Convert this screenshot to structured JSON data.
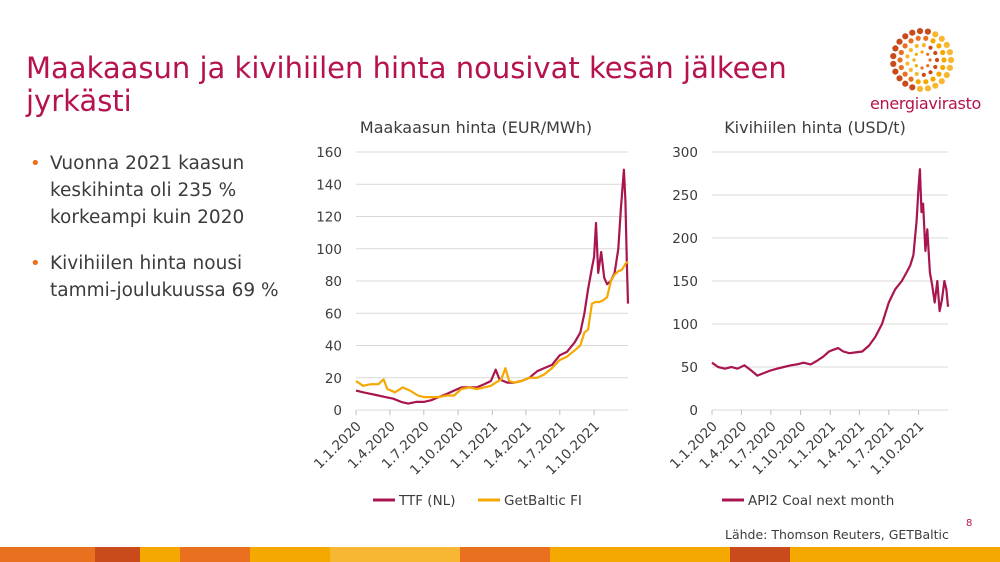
{
  "slide": {
    "title": "Maakaasun ja kivihiilen hinta nousivat kesän jälkeen jyrkästi",
    "bullets": [
      "Vuonna 2021 kaasun keskihinta oli 235 % korkeampi kuin 2020",
      "Kivihiilen hinta nousi tammi-joulukuussa 69 %"
    ],
    "source": "Lähde: Thomson Reuters, GETBaltic",
    "page_number": "8",
    "logo_text": "energiavirasto"
  },
  "colors": {
    "title": "#b5124f",
    "ttf": "#a8154f",
    "getbaltic": "#f5a800",
    "coal": "#a8154f",
    "bullet": "#e8701e",
    "grid": "#d9d9d9",
    "band": [
      "#e8701e",
      "#c94a1a",
      "#f5a800",
      "#e8701e",
      "#f5a800",
      "#f7b733",
      "#e8701e",
      "#f5a800",
      "#c94a1a",
      "#f5a800"
    ]
  },
  "chart_data": [
    {
      "type": "line",
      "title": "Maakaasun hinta (EUR/MWh)",
      "x_axis": "date",
      "xlim": [
        "2020-01-01",
        "2021-12-31"
      ],
      "x_ticks": [
        "1.1.2020",
        "1.4.2020",
        "1.7.2020",
        "1.10.2020",
        "1.1.2021",
        "1.4.2021",
        "1.7.2021",
        "1.10.2021"
      ],
      "x_tick_dates": [
        "2020-01-01",
        "2020-04-01",
        "2020-07-01",
        "2020-10-01",
        "2021-01-01",
        "2021-04-01",
        "2021-07-01",
        "2021-10-01"
      ],
      "ylim": [
        0,
        160
      ],
      "y_ticks": [
        0,
        20,
        40,
        60,
        80,
        100,
        120,
        140,
        160
      ],
      "grid": true,
      "legend": "bottom",
      "series": [
        {
          "name": "TTF (NL)",
          "color": "#a8154f",
          "points": [
            [
              "2020-01-01",
              12
            ],
            [
              "2020-01-20",
              11
            ],
            [
              "2020-02-10",
              10
            ],
            [
              "2020-03-01",
              9
            ],
            [
              "2020-03-20",
              8
            ],
            [
              "2020-04-10",
              7
            ],
            [
              "2020-05-01",
              5
            ],
            [
              "2020-05-20",
              4
            ],
            [
              "2020-06-10",
              5
            ],
            [
              "2020-07-01",
              5
            ],
            [
              "2020-07-20",
              6
            ],
            [
              "2020-08-10",
              8
            ],
            [
              "2020-09-01",
              10
            ],
            [
              "2020-09-20",
              12
            ],
            [
              "2020-10-10",
              14
            ],
            [
              "2020-11-01",
              14
            ],
            [
              "2020-11-20",
              14
            ],
            [
              "2020-12-10",
              16
            ],
            [
              "2020-12-28",
              18
            ],
            [
              "2021-01-10",
              25
            ],
            [
              "2021-01-20",
              19
            ],
            [
              "2021-02-10",
              17
            ],
            [
              "2021-03-01",
              17
            ],
            [
              "2021-03-20",
              18
            ],
            [
              "2021-04-10",
              20
            ],
            [
              "2021-05-01",
              24
            ],
            [
              "2021-05-20",
              26
            ],
            [
              "2021-06-10",
              28
            ],
            [
              "2021-07-01",
              34
            ],
            [
              "2021-07-20",
              36
            ],
            [
              "2021-08-10",
              42
            ],
            [
              "2021-08-25",
              48
            ],
            [
              "2021-09-05",
              60
            ],
            [
              "2021-09-15",
              75
            ],
            [
              "2021-09-25",
              88
            ],
            [
              "2021-10-01",
              95
            ],
            [
              "2021-10-06",
              116
            ],
            [
              "2021-10-12",
              85
            ],
            [
              "2021-10-20",
              98
            ],
            [
              "2021-10-28",
              82
            ],
            [
              "2021-11-05",
              78
            ],
            [
              "2021-11-15",
              80
            ],
            [
              "2021-11-25",
              85
            ],
            [
              "2021-12-05",
              100
            ],
            [
              "2021-12-12",
              125
            ],
            [
              "2021-12-20",
              149
            ],
            [
              "2021-12-24",
              130
            ],
            [
              "2021-12-28",
              90
            ],
            [
              "2021-12-31",
              66
            ]
          ]
        },
        {
          "name": "GetBaltic FI",
          "color": "#f5a800",
          "points": [
            [
              "2020-01-01",
              18
            ],
            [
              "2020-01-20",
              15
            ],
            [
              "2020-02-10",
              16
            ],
            [
              "2020-03-01",
              16
            ],
            [
              "2020-03-15",
              19
            ],
            [
              "2020-03-25",
              13
            ],
            [
              "2020-04-15",
              11
            ],
            [
              "2020-05-05",
              14
            ],
            [
              "2020-05-25",
              12
            ],
            [
              "2020-06-15",
              9
            ],
            [
              "2020-07-01",
              8
            ],
            [
              "2020-07-20",
              8
            ],
            [
              "2020-08-10",
              8
            ],
            [
              "2020-09-01",
              9
            ],
            [
              "2020-09-20",
              9
            ],
            [
              "2020-10-10",
              13
            ],
            [
              "2020-11-01",
              14
            ],
            [
              "2020-11-20",
              13
            ],
            [
              "2020-12-10",
              14
            ],
            [
              "2020-12-28",
              15
            ],
            [
              "2021-01-10",
              17
            ],
            [
              "2021-01-25",
              19
            ],
            [
              "2021-02-05",
              26
            ],
            [
              "2021-02-15",
              18
            ],
            [
              "2021-03-01",
              17
            ],
            [
              "2021-03-20",
              18
            ],
            [
              "2021-04-10",
              20
            ],
            [
              "2021-05-01",
              20
            ],
            [
              "2021-05-20",
              22
            ],
            [
              "2021-06-10",
              26
            ],
            [
              "2021-07-01",
              31
            ],
            [
              "2021-07-20",
              33
            ],
            [
              "2021-08-10",
              37
            ],
            [
              "2021-08-25",
              40
            ],
            [
              "2021-09-05",
              48
            ],
            [
              "2021-09-15",
              50
            ],
            [
              "2021-09-25",
              66
            ],
            [
              "2021-10-05",
              67
            ],
            [
              "2021-10-15",
              67
            ],
            [
              "2021-10-25",
              68
            ],
            [
              "2021-11-05",
              70
            ],
            [
              "2021-11-15",
              80
            ],
            [
              "2021-11-25",
              84
            ],
            [
              "2021-12-05",
              86
            ],
            [
              "2021-12-15",
              87
            ],
            [
              "2021-12-25",
              91
            ],
            [
              "2021-12-31",
              92
            ]
          ]
        }
      ]
    },
    {
      "type": "line",
      "title": "Kivihiilen hinta (USD/t)",
      "x_axis": "date",
      "xlim": [
        "2020-01-01",
        "2021-12-31"
      ],
      "x_ticks": [
        "1.1.2020",
        "1.4.2020",
        "1.7.2020",
        "1.10.2020",
        "1.1.2021",
        "1.4.2021",
        "1.7.2021",
        "1.10.2021"
      ],
      "x_tick_dates": [
        "2020-01-01",
        "2020-04-01",
        "2020-07-01",
        "2020-10-01",
        "2021-01-01",
        "2021-04-01",
        "2021-07-01",
        "2021-10-01"
      ],
      "ylim": [
        0,
        300
      ],
      "y_ticks": [
        0,
        50,
        100,
        150,
        200,
        250,
        300
      ],
      "grid": true,
      "legend": "bottom",
      "series": [
        {
          "name": "API2 Coal next month",
          "color": "#a8154f",
          "points": [
            [
              "2020-01-01",
              55
            ],
            [
              "2020-01-20",
              50
            ],
            [
              "2020-02-10",
              48
            ],
            [
              "2020-03-01",
              50
            ],
            [
              "2020-03-20",
              48
            ],
            [
              "2020-04-10",
              52
            ],
            [
              "2020-05-01",
              46
            ],
            [
              "2020-05-20",
              40
            ],
            [
              "2020-06-10",
              43
            ],
            [
              "2020-07-01",
              46
            ],
            [
              "2020-07-20",
              48
            ],
            [
              "2020-08-10",
              50
            ],
            [
              "2020-09-01",
              52
            ],
            [
              "2020-09-20",
              53
            ],
            [
              "2020-10-10",
              55
            ],
            [
              "2020-11-01",
              53
            ],
            [
              "2020-11-20",
              57
            ],
            [
              "2020-12-10",
              62
            ],
            [
              "2020-12-28",
              68
            ],
            [
              "2021-01-10",
              70
            ],
            [
              "2021-01-25",
              72
            ],
            [
              "2021-02-10",
              68
            ],
            [
              "2021-03-01",
              66
            ],
            [
              "2021-03-20",
              67
            ],
            [
              "2021-04-10",
              68
            ],
            [
              "2021-05-01",
              75
            ],
            [
              "2021-05-20",
              85
            ],
            [
              "2021-06-10",
              100
            ],
            [
              "2021-07-01",
              125
            ],
            [
              "2021-07-20",
              140
            ],
            [
              "2021-08-10",
              150
            ],
            [
              "2021-08-25",
              160
            ],
            [
              "2021-09-05",
              168
            ],
            [
              "2021-09-15",
              180
            ],
            [
              "2021-09-25",
              220
            ],
            [
              "2021-10-01",
              260
            ],
            [
              "2021-10-05",
              280
            ],
            [
              "2021-10-10",
              230
            ],
            [
              "2021-10-15",
              240
            ],
            [
              "2021-10-22",
              185
            ],
            [
              "2021-10-28",
              210
            ],
            [
              "2021-11-05",
              160
            ],
            [
              "2021-11-12",
              145
            ],
            [
              "2021-11-20",
              125
            ],
            [
              "2021-11-28",
              150
            ],
            [
              "2021-12-05",
              115
            ],
            [
              "2021-12-12",
              128
            ],
            [
              "2021-12-20",
              150
            ],
            [
              "2021-12-26",
              140
            ],
            [
              "2021-12-31",
              120
            ]
          ]
        }
      ]
    }
  ]
}
